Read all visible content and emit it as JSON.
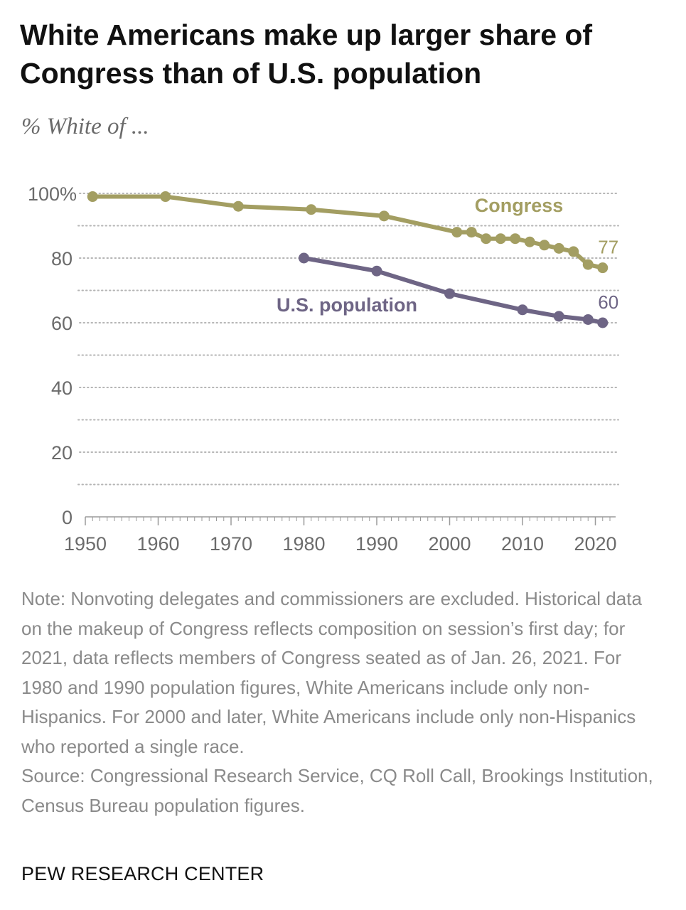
{
  "title": "White Americans make up larger share of Congress than of U.S. population",
  "subtitle": "% White of ...",
  "note": "Note: Nonvoting delegates and commissioners are excluded. Historical data on the makeup of Congress reflects composition on session’s first day; for 2021, data reflects members of Congress seated as of Jan. 26, 2021. For 1980 and 1990 population figures, White Americans include only non-Hispanics. For 2000 and later, White Americans include only non-Hispanics who reported a single race.",
  "source": "Source: Congressional Research Service, CQ Roll Call, Brookings Institution, Census Bureau population figures.",
  "credit": "PEW RESEARCH CENTER",
  "colors": {
    "congress": "#a39e62",
    "population": "#6e6585",
    "grid": "#b5b5b5",
    "tick_text": "#6b6b6b"
  },
  "chart_data": {
    "type": "line",
    "xlim": [
      1950,
      2022
    ],
    "ylim": [
      0,
      100
    ],
    "x_ticks": [
      1950,
      1960,
      1970,
      1980,
      1990,
      2000,
      2010,
      2020
    ],
    "x_tick_labels": [
      "1950",
      "1960",
      "1970",
      "1980",
      "1990",
      "2000",
      "2010",
      "2020"
    ],
    "y_ticks": [
      0,
      20,
      40,
      60,
      80,
      100
    ],
    "y_tick_labels": [
      "0",
      "20",
      "40",
      "60",
      "80",
      "100%"
    ],
    "grid": true,
    "series": [
      {
        "name": "Congress",
        "color": "#a39e62",
        "end_label": "77",
        "x": [
          1951,
          1961,
          1971,
          1981,
          1991,
          2001,
          2003,
          2005,
          2007,
          2009,
          2011,
          2013,
          2015,
          2017,
          2019,
          2021
        ],
        "y": [
          99,
          99,
          96,
          95,
          93,
          88,
          88,
          86,
          86,
          86,
          85,
          84,
          83,
          82,
          78,
          77
        ]
      },
      {
        "name": "U.S. population",
        "color": "#6e6585",
        "end_label": "60",
        "x": [
          1980,
          1990,
          2000,
          2010,
          2015,
          2019,
          2021
        ],
        "y": [
          80,
          76,
          69,
          64,
          62,
          61,
          60
        ]
      }
    ]
  }
}
